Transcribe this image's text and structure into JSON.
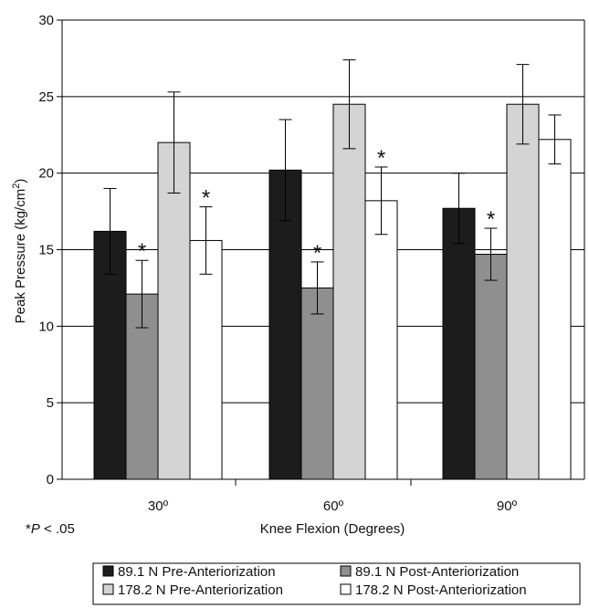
{
  "chart_data": {
    "type": "bar",
    "title": "",
    "xlabel": "Knee Flexion (Degrees)",
    "ylabel_main": "Peak Pressure (kg/cm",
    "ylabel_sup": "2",
    "ylabel_close": ")",
    "ylim": [
      0,
      30
    ],
    "yticks": [
      "0",
      "5",
      "10",
      "15",
      "20",
      "25",
      "30"
    ],
    "categories": [
      "30º",
      "60º",
      "90º"
    ],
    "grid": true,
    "legend_position": "bottom",
    "footnote": "*P < .05",
    "footnote_star": "*",
    "footnote_p": "P",
    "footnote_rest": " < .05",
    "significance_marker": "*",
    "series": [
      {
        "name": "89.1 N Pre-Anteriorization",
        "color": "#1c1c1c",
        "values": [
          16.2,
          20.2,
          17.7
        ],
        "errors": [
          2.8,
          3.3,
          2.3
        ],
        "significant": [
          false,
          false,
          false
        ]
      },
      {
        "name": "89.1 N Post-Anteriorization",
        "color": "#8f8f8f",
        "values": [
          12.1,
          12.5,
          14.7
        ],
        "errors": [
          2.2,
          1.7,
          1.7
        ],
        "significant": [
          true,
          true,
          true
        ]
      },
      {
        "name": "178.2 N Pre-Anteriorization",
        "color": "#d4d4d4",
        "values": [
          22.0,
          24.5,
          24.5
        ],
        "errors": [
          3.3,
          2.9,
          2.6
        ],
        "significant": [
          false,
          false,
          false
        ]
      },
      {
        "name": "178.2 N Post-Anteriorization",
        "color": "#ffffff",
        "values": [
          15.6,
          18.2,
          22.2
        ],
        "errors": [
          2.2,
          2.2,
          1.6
        ],
        "significant": [
          true,
          true,
          false
        ]
      }
    ]
  }
}
